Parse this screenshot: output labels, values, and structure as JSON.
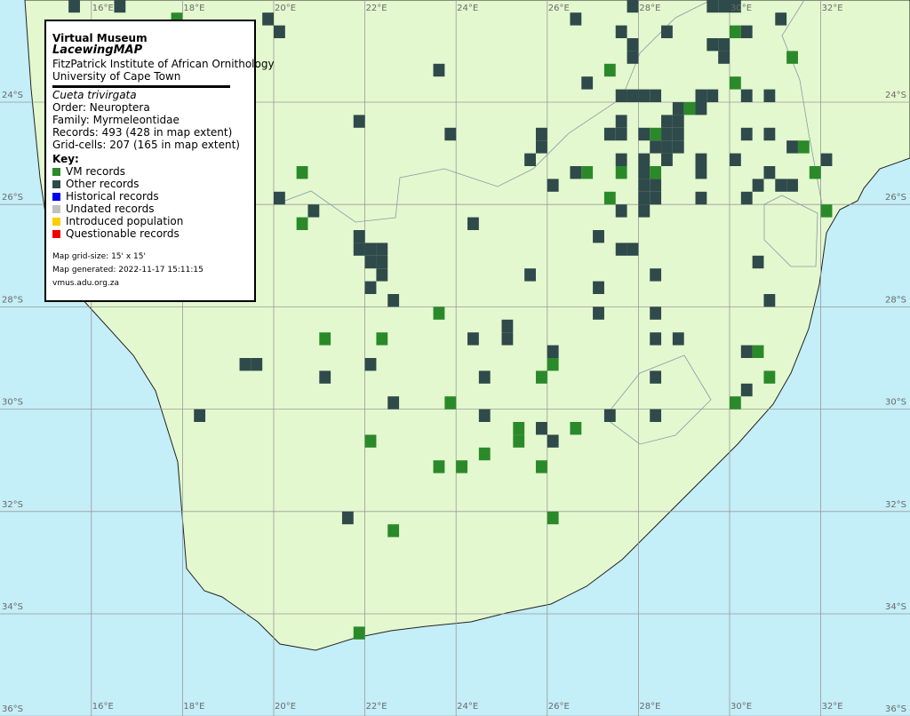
{
  "map": {
    "legend": {
      "title": "Virtual Museum",
      "project": "LacewingMAP",
      "institute": "FitzPatrick Institute of African Ornithology",
      "university": "University of Cape Town",
      "species": "Cueta trivirgata",
      "order": "Order: Neuroptera",
      "family": "Family: Myrmeleontidae",
      "records": "Records: 493 (428 in map extent)",
      "grid_cells": "Grid-cells: 207 (165 in map extent)",
      "key_title": "Key:",
      "key": [
        {
          "label": "VM records",
          "color": "#2a8a2a",
          "cells": [
            [
              17.75,
              -22.25
            ],
            [
              20.5,
              -25.25
            ],
            [
              20.5,
              -26.25
            ],
            [
              23.5,
              -28
            ],
            [
              21,
              -28.5
            ],
            [
              22.25,
              -28.5
            ],
            [
              23.75,
              -29.75
            ],
            [
              22,
              -30.5
            ],
            [
              25.25,
              -30.25
            ],
            [
              25.25,
              -30.5
            ],
            [
              26.5,
              -30.25
            ],
            [
              24.5,
              -30.75
            ],
            [
              23.5,
              -31
            ],
            [
              24,
              -31
            ],
            [
              25.75,
              -31
            ],
            [
              26,
              -32
            ],
            [
              22.5,
              -32.25
            ],
            [
              21.75,
              -34.25
            ],
            [
              26,
              -29
            ],
            [
              25.75,
              -29.25
            ],
            [
              27.25,
              -25.75
            ],
            [
              26.75,
              -25.25
            ],
            [
              27.5,
              -25.25
            ],
            [
              28.25,
              -25.25
            ],
            [
              28.25,
              -24.5
            ],
            [
              29,
              -24
            ],
            [
              30,
              -23.5
            ],
            [
              27.25,
              -23.25
            ],
            [
              30,
              -22.5
            ],
            [
              31.25,
              -23
            ],
            [
              31.5,
              -24.75
            ],
            [
              31.75,
              -25.25
            ],
            [
              32,
              -26
            ],
            [
              30.5,
              -28.75
            ],
            [
              30.75,
              -29.25
            ],
            [
              30,
              -29.75
            ]
          ]
        },
        {
          "label": "Other records",
          "color": "#2f4a4a",
          "cells": [
            [
              15.5,
              -22
            ],
            [
              16.5,
              -22
            ],
            [
              19.75,
              -22.25
            ],
            [
              20,
              -22.5
            ],
            [
              23.5,
              -23.25
            ],
            [
              21.75,
              -24.25
            ],
            [
              23.75,
              -24.5
            ],
            [
              25.75,
              -24.5
            ],
            [
              25.75,
              -24.75
            ],
            [
              25.5,
              -25
            ],
            [
              26,
              -25.5
            ],
            [
              20,
              -25.75
            ],
            [
              20.75,
              -26
            ],
            [
              24.25,
              -26.25
            ],
            [
              21.75,
              -26.5
            ],
            [
              21.75,
              -26.75
            ],
            [
              22,
              -26.75
            ],
            [
              22.25,
              -26.75
            ],
            [
              22,
              -27
            ],
            [
              22.25,
              -27
            ],
            [
              22.25,
              -27.25
            ],
            [
              22,
              -27.5
            ],
            [
              22.5,
              -27.75
            ],
            [
              25.5,
              -27.25
            ],
            [
              24.25,
              -28.5
            ],
            [
              25,
              -28.25
            ],
            [
              25,
              -28.5
            ],
            [
              19.25,
              -29
            ],
            [
              19.5,
              -29
            ],
            [
              22,
              -29
            ],
            [
              21,
              -29.25
            ],
            [
              22.5,
              -29.75
            ],
            [
              24.5,
              -29.25
            ],
            [
              24.5,
              -30
            ],
            [
              18.25,
              -30
            ],
            [
              25.75,
              -30.25
            ],
            [
              26,
              -30.5
            ],
            [
              21.5,
              -32
            ],
            [
              26,
              -28.75
            ],
            [
              27.25,
              -30
            ],
            [
              28.25,
              -30
            ],
            [
              28.25,
              -29.25
            ],
            [
              28.25,
              -28.5
            ],
            [
              28.75,
              -28.5
            ],
            [
              28.25,
              -28
            ],
            [
              28.25,
              -27.25
            ],
            [
              27,
              -28
            ],
            [
              27,
              -27.5
            ],
            [
              27.5,
              -26.75
            ],
            [
              27.75,
              -26.75
            ],
            [
              27,
              -26.5
            ],
            [
              27.5,
              -26
            ],
            [
              28,
              -26
            ],
            [
              28,
              -25.5
            ],
            [
              28.25,
              -25.5
            ],
            [
              28,
              -25.75
            ],
            [
              28.25,
              -25.75
            ],
            [
              26.5,
              -25.25
            ],
            [
              28,
              -25.25
            ],
            [
              27.5,
              -25
            ],
            [
              28,
              -25
            ],
            [
              28.5,
              -25
            ],
            [
              27.25,
              -24.5
            ],
            [
              27.5,
              -24.5
            ],
            [
              27.5,
              -24.25
            ],
            [
              28,
              -24.5
            ],
            [
              28.5,
              -24.25
            ],
            [
              28.75,
              -24.25
            ],
            [
              28.5,
              -24.5
            ],
            [
              28.75,
              -24.5
            ],
            [
              28.5,
              -24.75
            ],
            [
              28.75,
              -24.75
            ],
            [
              28.25,
              -24.75
            ],
            [
              29.25,
              -24
            ],
            [
              28.75,
              -24
            ],
            [
              27.5,
              -23.75
            ],
            [
              27.75,
              -23.75
            ],
            [
              28,
              -23.75
            ],
            [
              28.25,
              -23.75
            ],
            [
              29.25,
              -23.75
            ],
            [
              29.5,
              -23.75
            ],
            [
              30.25,
              -23.75
            ],
            [
              30.75,
              -23.75
            ],
            [
              26.75,
              -23.5
            ],
            [
              27.5,
              -22.5
            ],
            [
              27.75,
              -22.75
            ],
            [
              27.75,
              -23
            ],
            [
              26.5,
              -22.25
            ],
            [
              27.75,
              -22
            ],
            [
              28.5,
              -22.5
            ],
            [
              29.5,
              -22
            ],
            [
              29.75,
              -22
            ],
            [
              30,
              -22
            ],
            [
              29.5,
              -22.75
            ],
            [
              29.75,
              -22.75
            ],
            [
              29.75,
              -23
            ],
            [
              30.25,
              -22.5
            ],
            [
              31,
              -22.25
            ],
            [
              30,
              -25
            ],
            [
              29.25,
              -25
            ],
            [
              29.25,
              -25.25
            ],
            [
              30.25,
              -24.5
            ],
            [
              30.75,
              -24.5
            ],
            [
              30.5,
              -25.5
            ],
            [
              30.75,
              -25.25
            ],
            [
              31,
              -25.5
            ],
            [
              31.25,
              -25.5
            ],
            [
              31.25,
              -24.75
            ],
            [
              32,
              -25
            ],
            [
              29.25,
              -25.75
            ],
            [
              30.25,
              -25.75
            ],
            [
              30.5,
              -27
            ],
            [
              30.75,
              -27.75
            ],
            [
              30.25,
              -28.75
            ],
            [
              30.25,
              -29.5
            ]
          ]
        },
        {
          "label": "Historical records",
          "color": "#0000ee"
        },
        {
          "label": "Undated records",
          "color": "#c0c0c0"
        },
        {
          "label": "Introduced population",
          "color": "#ffcc00"
        },
        {
          "label": "Questionable records",
          "color": "#ee0000"
        }
      ],
      "grid_size": "Map grid-size: 15' x 15'",
      "generated": "Map generated: 2022-11-17 15:11:15",
      "url": "vmus.adu.org.za"
    },
    "lons": [
      {
        "value": 16,
        "label": "16°E"
      },
      {
        "value": 18,
        "label": "18°E"
      },
      {
        "value": 20,
        "label": "20°E"
      },
      {
        "value": 22,
        "label": "22°E"
      },
      {
        "value": 24,
        "label": "24°E"
      },
      {
        "value": 26,
        "label": "26°E"
      },
      {
        "value": 28,
        "label": "28°E"
      },
      {
        "value": 30,
        "label": "30°E"
      },
      {
        "value": 32,
        "label": "32°E"
      }
    ],
    "lats": [
      {
        "value": -24,
        "label": "24°S"
      },
      {
        "value": -26,
        "label": "26°S"
      },
      {
        "value": -28,
        "label": "28°S"
      },
      {
        "value": -30,
        "label": "30°S"
      },
      {
        "value": -32,
        "label": "32°S"
      },
      {
        "value": -34,
        "label": "34°S"
      },
      {
        "value": -36,
        "label": "36°S"
      }
    ]
  }
}
